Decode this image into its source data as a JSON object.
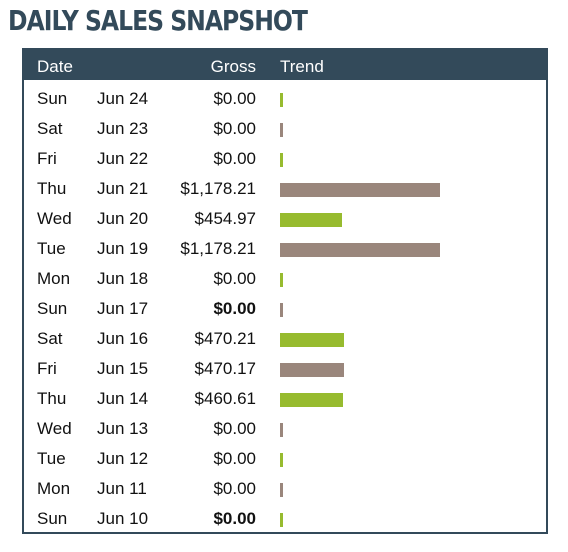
{
  "title": "DAILY SALES SNAPSHOT",
  "colors": {
    "header_bg": "#334a5a",
    "bar_green": "#97bb2f",
    "bar_taupe": "#9a867c"
  },
  "table": {
    "headers": {
      "date": "Date",
      "gross": "Gross",
      "trend": "Trend"
    },
    "max_gross": 1178.21,
    "rows": [
      {
        "day": "Sun",
        "date": "Jun 24",
        "gross": "$0.00",
        "value": 0,
        "bold": false,
        "color": "green"
      },
      {
        "day": "Sat",
        "date": "Jun 23",
        "gross": "$0.00",
        "value": 0,
        "bold": false,
        "color": "taupe"
      },
      {
        "day": "Fri",
        "date": "Jun 22",
        "gross": "$0.00",
        "value": 0,
        "bold": false,
        "color": "green"
      },
      {
        "day": "Thu",
        "date": "Jun 21",
        "gross": "$1,178.21",
        "value": 1178.21,
        "bold": false,
        "color": "taupe"
      },
      {
        "day": "Wed",
        "date": "Jun 20",
        "gross": "$454.97",
        "value": 454.97,
        "bold": false,
        "color": "green"
      },
      {
        "day": "Tue",
        "date": "Jun 19",
        "gross": "$1,178.21",
        "value": 1178.21,
        "bold": false,
        "color": "taupe"
      },
      {
        "day": "Mon",
        "date": "Jun 18",
        "gross": "$0.00",
        "value": 0,
        "bold": false,
        "color": "green"
      },
      {
        "day": "Sun",
        "date": "Jun 17",
        "gross": "$0.00",
        "value": 0,
        "bold": true,
        "color": "taupe"
      },
      {
        "day": "Sat",
        "date": "Jun 16",
        "gross": "$470.21",
        "value": 470.21,
        "bold": false,
        "color": "green"
      },
      {
        "day": "Fri",
        "date": "Jun 15",
        "gross": "$470.17",
        "value": 470.17,
        "bold": false,
        "color": "taupe"
      },
      {
        "day": "Thu",
        "date": "Jun 14",
        "gross": "$460.61",
        "value": 460.61,
        "bold": false,
        "color": "green"
      },
      {
        "day": "Wed",
        "date": "Jun 13",
        "gross": "$0.00",
        "value": 0,
        "bold": false,
        "color": "taupe"
      },
      {
        "day": "Tue",
        "date": "Jun 12",
        "gross": "$0.00",
        "value": 0,
        "bold": false,
        "color": "green"
      },
      {
        "day": "Mon",
        "date": "Jun 11",
        "gross": "$0.00",
        "value": 0,
        "bold": false,
        "color": "taupe"
      },
      {
        "day": "Sun",
        "date": "Jun 10",
        "gross": "$0.00",
        "value": 0,
        "bold": true,
        "color": "green"
      }
    ]
  }
}
